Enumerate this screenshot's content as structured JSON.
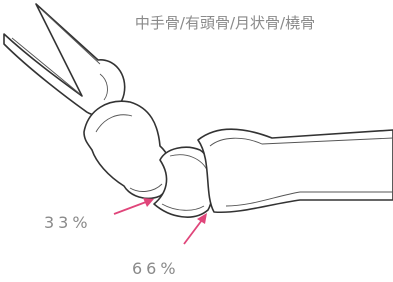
{
  "title": "中手骨/有頭骨/月状骨/橈骨",
  "annotations": [
    {
      "label": "33%"
    },
    {
      "label": "66%"
    }
  ]
}
